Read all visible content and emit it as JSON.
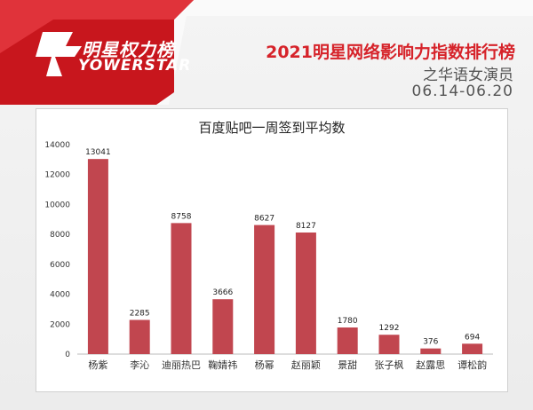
{
  "header": {
    "logo_cn": "明星权力榜",
    "logo_en": "YOWERSTAR",
    "title": "2021明星网络影响力指数排行榜",
    "subtitle": "之华语女演员",
    "date_range": "06.14-06.20"
  },
  "colors": {
    "brand_red": "#d6232a",
    "bar": "#c1464f"
  },
  "chart_data": {
    "type": "bar",
    "title": "百度贴吧一周签到平均数",
    "xlabel": "",
    "ylabel": "",
    "categories": [
      "杨紫",
      "李沁",
      "迪丽热巴",
      "鞠婧祎",
      "杨幂",
      "赵丽颖",
      "景甜",
      "张子枫",
      "赵露思",
      "谭松韵"
    ],
    "values": [
      13041,
      2285,
      8758,
      3666,
      8627,
      8127,
      1780,
      1292,
      376,
      694
    ],
    "ylim": [
      0,
      14000
    ],
    "yticks": [
      0,
      2000,
      4000,
      6000,
      8000,
      10000,
      12000,
      14000
    ],
    "grid": false,
    "legend": "none"
  }
}
